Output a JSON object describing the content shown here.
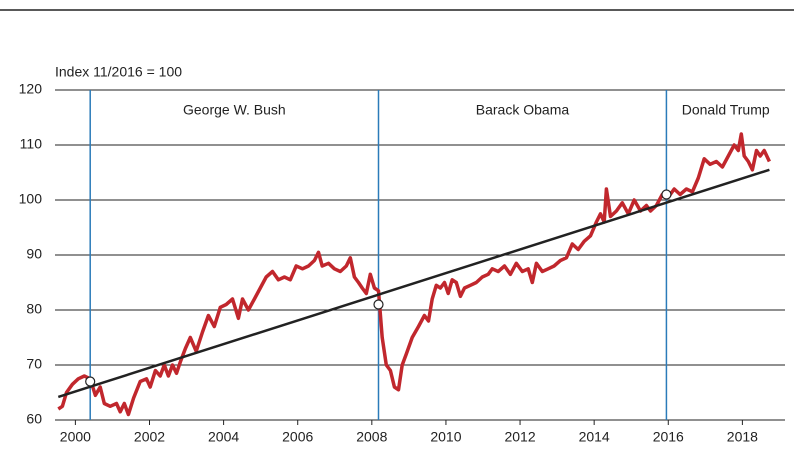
{
  "chart_data": {
    "type": "line",
    "y_axis_label": "Index 11/2016 = 100",
    "xlim": [
      1999.45,
      2019.15
    ],
    "xticks": [
      2000,
      2002,
      2004,
      2006,
      2008,
      2010,
      2012,
      2014,
      2016,
      2018
    ],
    "ylim": [
      60,
      120
    ],
    "yticks": [
      60,
      70,
      80,
      90,
      100,
      110,
      120
    ],
    "grid": true,
    "series": [
      {
        "color": "#c1272d",
        "x": [
          1999.54,
          1999.65,
          1999.76,
          1999.92,
          2000.08,
          2000.24,
          2000.4,
          2000.54,
          2000.67,
          2000.78,
          2000.94,
          2001.11,
          2001.21,
          2001.32,
          2001.43,
          2001.57,
          2001.75,
          2001.92,
          2002.02,
          2002.16,
          2002.29,
          2002.4,
          2002.51,
          2002.62,
          2002.73,
          2002.83,
          2002.97,
          2003.1,
          2003.26,
          2003.43,
          2003.59,
          2003.75,
          2003.91,
          2004.07,
          2004.24,
          2004.4,
          2004.51,
          2004.67,
          2004.83,
          2004.99,
          2005.15,
          2005.32,
          2005.48,
          2005.64,
          2005.8,
          2005.96,
          2006.13,
          2006.29,
          2006.45,
          2006.56,
          2006.66,
          2006.83,
          2006.99,
          2007.15,
          2007.31,
          2007.42,
          2007.53,
          2007.64,
          2007.74,
          2007.85,
          2007.96,
          2008.07,
          2008.18,
          2008.28,
          2008.39,
          2008.5,
          2008.61,
          2008.72,
          2008.82,
          2008.93,
          2009.09,
          2009.26,
          2009.42,
          2009.53,
          2009.63,
          2009.74,
          2009.85,
          2009.96,
          2010.06,
          2010.17,
          2010.28,
          2010.39,
          2010.5,
          2010.66,
          2010.82,
          2010.98,
          2011.14,
          2011.25,
          2011.41,
          2011.58,
          2011.74,
          2011.9,
          2012.06,
          2012.22,
          2012.33,
          2012.44,
          2012.6,
          2012.76,
          2012.92,
          2013.09,
          2013.25,
          2013.41,
          2013.57,
          2013.73,
          2013.9,
          2014.06,
          2014.17,
          2014.27,
          2014.33,
          2014.44,
          2014.6,
          2014.76,
          2014.92,
          2015.08,
          2015.25,
          2015.41,
          2015.52,
          2015.68,
          2015.84,
          2016.0,
          2016.16,
          2016.32,
          2016.49,
          2016.65,
          2016.81,
          2016.97,
          2017.13,
          2017.3,
          2017.46,
          2017.62,
          2017.78,
          2017.89,
          2017.97,
          2018.05,
          2018.16,
          2018.27,
          2018.38,
          2018.48,
          2018.59,
          2018.73
        ],
        "values": [
          62,
          62.5,
          65,
          66.5,
          67.5,
          68,
          67.5,
          64.5,
          66,
          63,
          62.5,
          63,
          61.5,
          63,
          61,
          64,
          67,
          67.5,
          66,
          69,
          68,
          70,
          68,
          70,
          68.5,
          70.5,
          73,
          75,
          72.5,
          76,
          79,
          77,
          80.5,
          81,
          82,
          78.5,
          82,
          80,
          82,
          84,
          86,
          87,
          85.5,
          86,
          85.5,
          88,
          87.5,
          88,
          89,
          90.5,
          88,
          88.5,
          87.5,
          87,
          88,
          89.5,
          86,
          85,
          84,
          83,
          86.5,
          84,
          83.5,
          75,
          70,
          69,
          66,
          65.5,
          70,
          72,
          75,
          77,
          79,
          78,
          82,
          84.5,
          84,
          85,
          83,
          85.5,
          85,
          82.5,
          84,
          84.5,
          85,
          86,
          86.5,
          87.5,
          87,
          88,
          86.5,
          88.5,
          87,
          87.5,
          85,
          88.5,
          87,
          87.5,
          88,
          89,
          89.5,
          92,
          91,
          92.5,
          93.5,
          96,
          97.5,
          96,
          102,
          97,
          98,
          99.5,
          97.5,
          100,
          98,
          99,
          98,
          99,
          101,
          100.5,
          102,
          101,
          102,
          101.5,
          104,
          107.5,
          106.5,
          107,
          106,
          108,
          110,
          109,
          112,
          108,
          107,
          105.5,
          109,
          108,
          109,
          107
        ]
      },
      {
        "color": "#222222",
        "x": [
          1999.54,
          2018.73
        ],
        "values": [
          64.2,
          105.5
        ]
      }
    ],
    "markers": {
      "x": [
        2000.4,
        2008.18,
        2015.95
      ],
      "values": [
        67,
        81,
        101
      ]
    },
    "vlines": {
      "color": "#2b7bb9",
      "x": [
        2000.4,
        2008.18,
        2015.95
      ]
    },
    "annotations": [
      "George W. Bush",
      "Barack Obama",
      "Donald Trump"
    ]
  }
}
